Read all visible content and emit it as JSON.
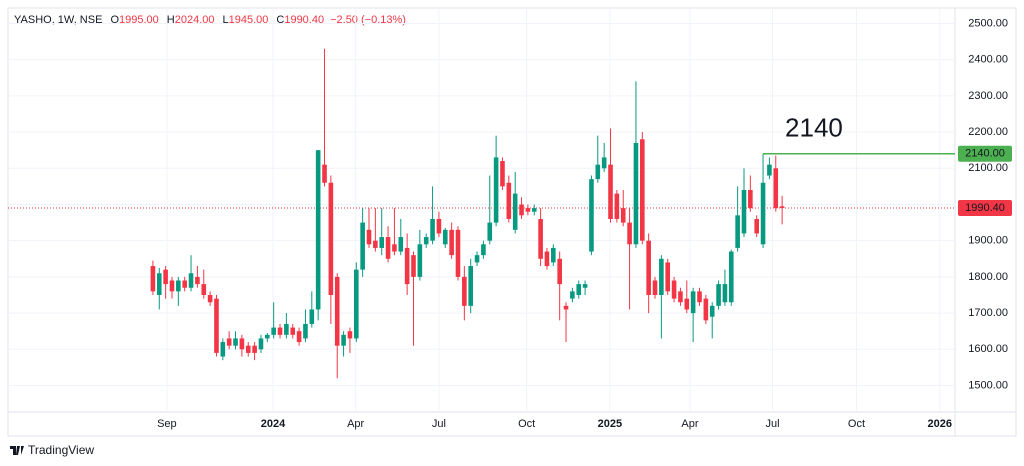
{
  "chart_data": {
    "type": "candlestick",
    "legend": {
      "symbol": "YASHO, 1W, NSE",
      "items": [
        {
          "label": "O",
          "value": "1995.00"
        },
        {
          "label": "H",
          "value": "2024.00"
        },
        {
          "label": "L",
          "value": "1945.00"
        },
        {
          "label": "C",
          "value": "1990.40"
        }
      ],
      "change": "−2.50 (−0.13%)"
    },
    "up_color": "#089981",
    "down_color": "#f23645",
    "open": [
      1830,
      1750,
      1820,
      1790,
      1760,
      1790,
      1770,
      1800,
      1780,
      1750,
      1740,
      1580,
      1630,
      1610,
      1630,
      1610,
      1610,
      1600,
      1630,
      1640,
      1660,
      1640,
      1660,
      1650,
      1630,
      1670,
      1710,
      2110,
      2060,
      1800,
      1610,
      1650,
      1630,
      1820,
      1930,
      1900,
      1880,
      1910,
      1890,
      1870,
      1880,
      1860,
      1800,
      1890,
      1900,
      1960,
      1890,
      1930,
      1930,
      1800,
      1720,
      1840,
      1860,
      1900,
      1950,
      2120,
      2060,
      1930,
      2000,
      1990,
      1980,
      1960,
      1870,
      1840,
      1850,
      1720,
      1740,
      1750,
      1770,
      1870,
      2070,
      2100,
      2110,
      2030,
      1990,
      1950,
      1890,
      2180,
      1900,
      1790,
      1750,
      1840,
      1790,
      1760,
      1740,
      1700,
      1760,
      1740,
      1690,
      1720,
      1730,
      1730,
      1880,
      1920,
      2040,
      1960,
      1890,
      2080,
      2100,
      1995
    ],
    "high": [
      1845,
      1825,
      1830,
      1800,
      1800,
      1800,
      1860,
      1830,
      1820,
      1760,
      1750,
      1630,
      1650,
      1650,
      1640,
      1620,
      1620,
      1640,
      1645,
      1730,
      1670,
      1700,
      1670,
      1660,
      1710,
      1760,
      2150,
      2430,
      2080,
      1810,
      1650,
      1660,
      1840,
      1990,
      1990,
      1990,
      1990,
      1940,
      1990,
      1960,
      1920,
      1870,
      1930,
      1920,
      2050,
      1980,
      1935,
      1950,
      1940,
      1830,
      1850,
      1870,
      1900,
      2080,
      2190,
      2130,
      2080,
      2090,
      2020,
      2000,
      2000,
      1990,
      1880,
      1890,
      1870,
      1730,
      1770,
      1790,
      1790,
      2080,
      2190,
      2170,
      2210,
      2040,
      2040,
      1990,
      2340,
      2200,
      1920,
      1800,
      1860,
      1850,
      1800,
      1770,
      1790,
      1770,
      1770,
      1750,
      1730,
      1790,
      1820,
      1875,
      2050,
      2100,
      2080,
      1970,
      2140,
      2130,
      2135,
      2024
    ],
    "low": [
      1750,
      1710,
      1740,
      1740,
      1720,
      1760,
      1760,
      1770,
      1740,
      1720,
      1580,
      1570,
      1600,
      1600,
      1580,
      1580,
      1570,
      1590,
      1620,
      1630,
      1630,
      1630,
      1630,
      1610,
      1620,
      1660,
      1680,
      2050,
      1670,
      1520,
      1580,
      1590,
      1620,
      1800,
      1880,
      1870,
      1860,
      1840,
      1860,
      1860,
      1750,
      1610,
      1790,
      1880,
      1890,
      1910,
      1880,
      1850,
      1790,
      1680,
      1700,
      1830,
      1850,
      1890,
      1940,
      2040,
      1950,
      1920,
      1960,
      1970,
      1970,
      1830,
      1820,
      1830,
      1680,
      1620,
      1730,
      1740,
      1750,
      1860,
      2060,
      2090,
      1950,
      1950,
      1940,
      1710,
      1880,
      1890,
      1700,
      1740,
      1630,
      1750,
      1730,
      1720,
      1700,
      1620,
      1720,
      1670,
      1630,
      1710,
      1720,
      1720,
      1870,
      1910,
      1980,
      1910,
      1880,
      2070,
      1980,
      1945
    ],
    "close": [
      1760,
      1810,
      1780,
      1760,
      1790,
      1770,
      1810,
      1780,
      1750,
      1730,
      1590,
      1620,
      1610,
      1630,
      1600,
      1590,
      1590,
      1630,
      1640,
      1660,
      1640,
      1670,
      1640,
      1620,
      1670,
      1710,
      2150,
      2060,
      1750,
      1610,
      1640,
      1630,
      1820,
      1950,
      1890,
      1880,
      1910,
      1850,
      1870,
      1910,
      1780,
      1800,
      1890,
      1910,
      1960,
      1920,
      1930,
      1860,
      1800,
      1720,
      1830,
      1860,
      1890,
      1950,
      2130,
      2050,
      1960,
      2030,
      1970,
      1980,
      1990,
      1850,
      1830,
      1880,
      1780,
      1710,
      1760,
      1780,
      1780,
      2070,
      2110,
      2130,
      1960,
      1960,
      1950,
      1890,
      2170,
      1900,
      1750,
      1750,
      1850,
      1760,
      1740,
      1730,
      1710,
      1760,
      1730,
      1680,
      1720,
      1780,
      1780,
      1870,
      1970,
      2040,
      1990,
      1920,
      2060,
      2110,
      1990,
      1990.4
    ],
    "xlim": [
      -22.8,
      126.2
    ],
    "xticks": [
      {
        "value": 2.2,
        "label": "Sep"
      },
      {
        "value": 18.9,
        "label": "2024"
      },
      {
        "value": 31.9,
        "label": "Apr"
      },
      {
        "value": 45,
        "label": "Jul"
      },
      {
        "value": 58.8,
        "label": "Oct"
      },
      {
        "value": 71.9,
        "label": "2025"
      },
      {
        "value": 84.5,
        "label": "Apr"
      },
      {
        "value": 97.5,
        "label": "Jul"
      },
      {
        "value": 110.7,
        "label": "Oct"
      },
      {
        "value": 123.8,
        "label": "2026"
      }
    ],
    "ylim": [
      1426.8,
      2542.7
    ],
    "yticks": [
      {
        "value": 1500,
        "label": "1500.00"
      },
      {
        "value": 1600,
        "label": "1600.00"
      },
      {
        "value": 1700,
        "label": "1700.00"
      },
      {
        "value": 1800,
        "label": "1800.00"
      },
      {
        "value": 1900,
        "label": "1900.00"
      },
      {
        "value": 2000,
        "label": "2000.00"
      },
      {
        "value": 2100,
        "label": "2100.00"
      },
      {
        "value": 2200,
        "label": "2200.00"
      },
      {
        "value": 2300,
        "label": "2300.00"
      },
      {
        "value": 2400,
        "label": "2400.00"
      },
      {
        "value": 2500,
        "label": "2500.00"
      }
    ],
    "last_price": {
      "value": 1990.4,
      "label": "1990.40"
    },
    "level": {
      "value": 2140,
      "label": "2140.00",
      "annotation": "2140",
      "color": "#4caf50"
    },
    "brand": "TradingView"
  }
}
